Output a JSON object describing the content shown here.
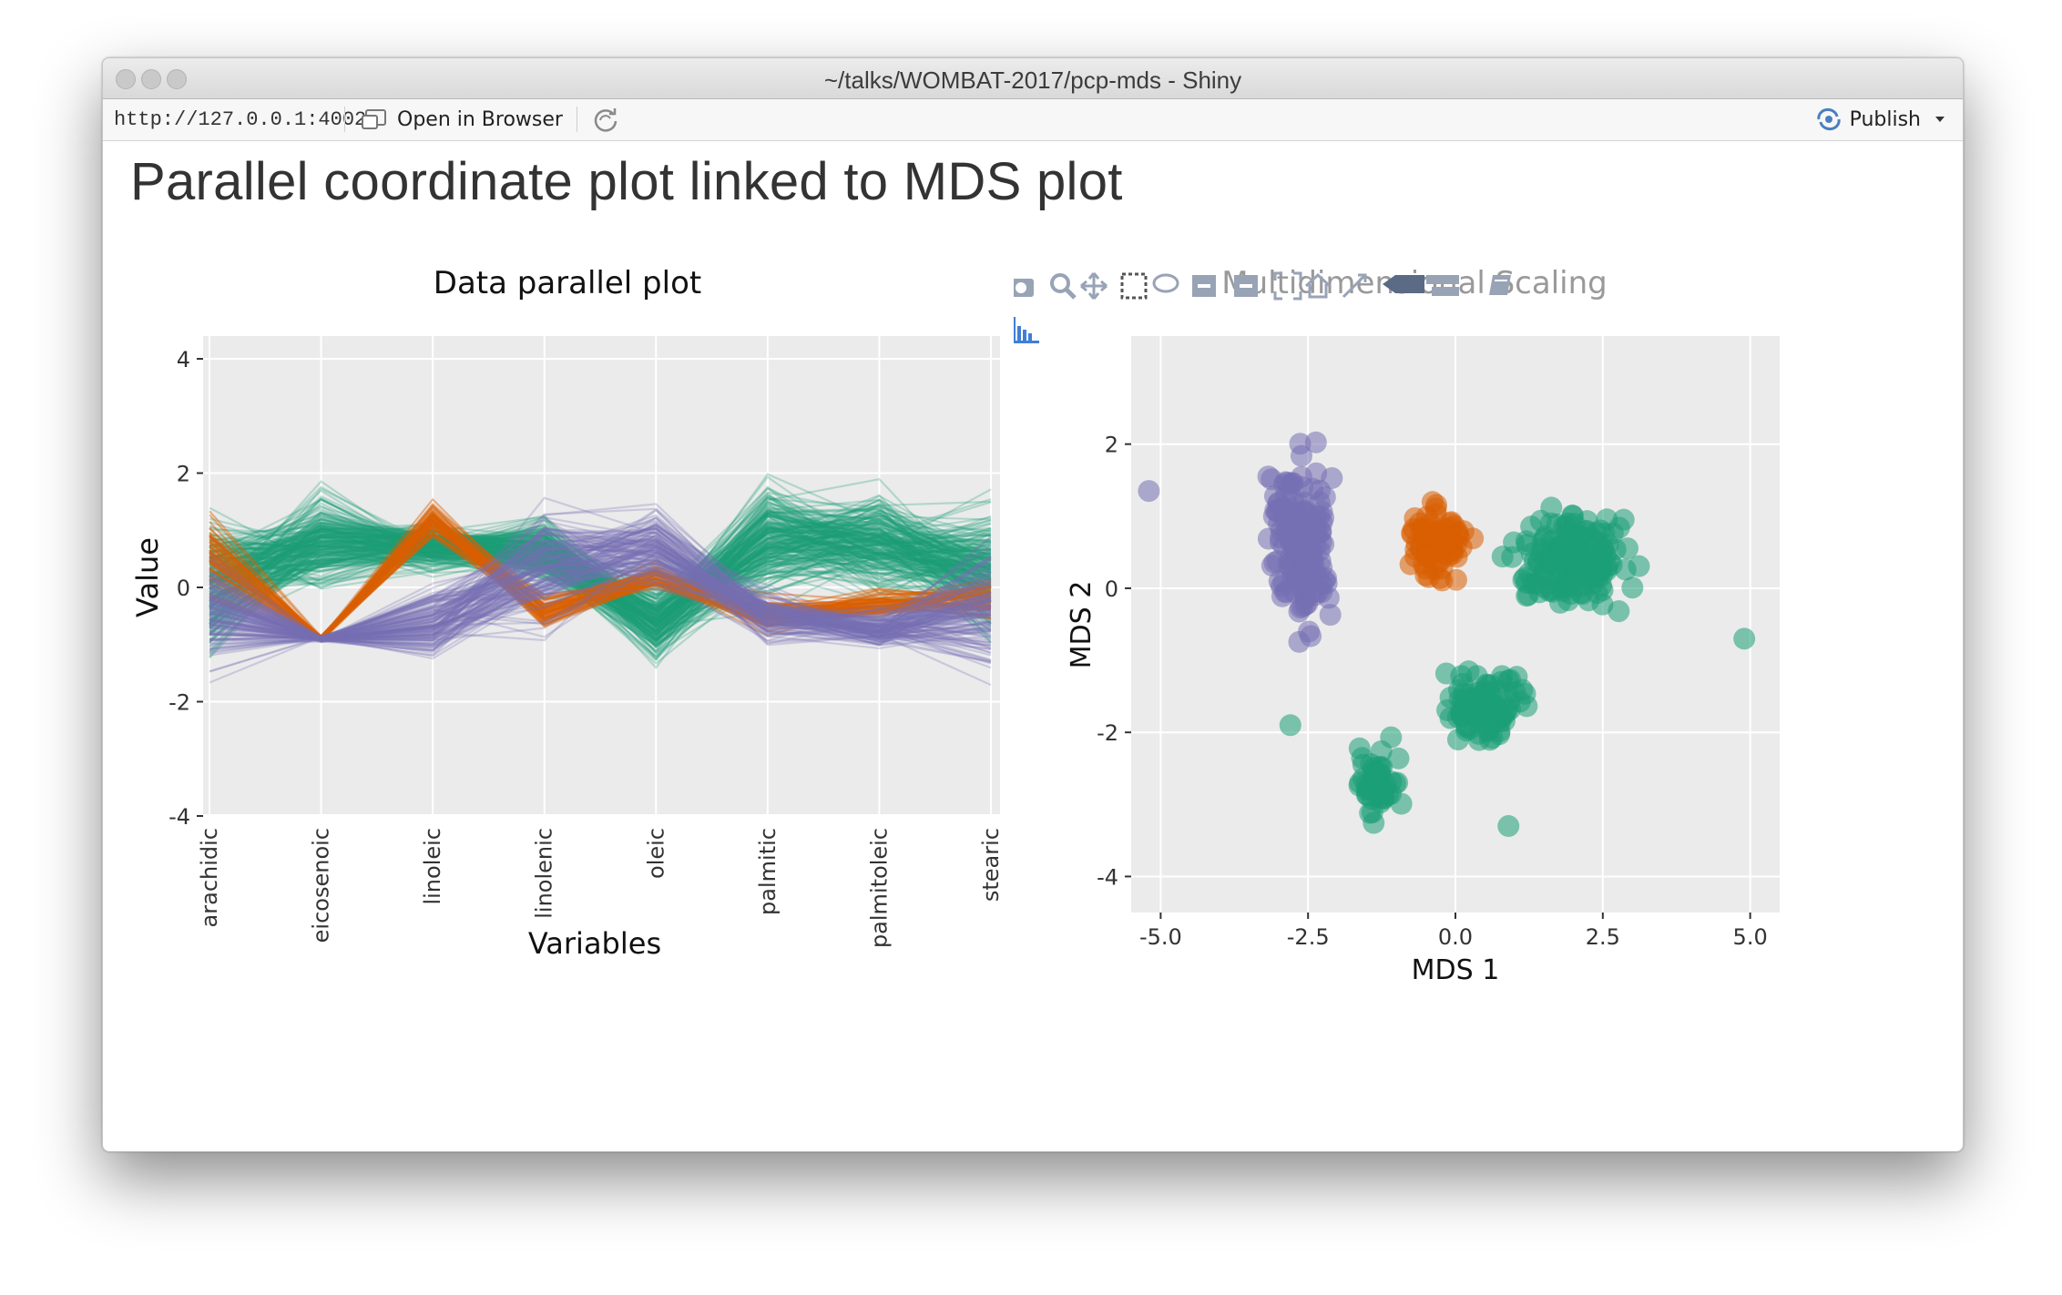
{
  "window": {
    "title": "~/talks/WOMBAT-2017/pcp-mds - Shiny"
  },
  "toolbar": {
    "url": "http://127.0.0.1:4002",
    "open_in_browser": "Open in Browser",
    "publish": "Publish"
  },
  "page": {
    "title": "Parallel coordinate plot linked to MDS plot"
  },
  "colors": {
    "group_green": "#1b9e77",
    "group_orange": "#d95f02",
    "group_purple": "#7570b3",
    "plot_bg": "#ebebeb"
  },
  "modebar_icons": [
    "camera-icon",
    "zoom-icon",
    "pan-icon",
    "box-select-icon",
    "lasso-icon",
    "zoom-in-icon",
    "zoom-out-icon",
    "autoscale-icon",
    "reset-axes-icon",
    "spike-lines-icon",
    "compare-hover-icon",
    "closest-hover-icon",
    "plotly-logo-icon"
  ],
  "chart_data": [
    {
      "type": "line",
      "title": "Data parallel plot",
      "xlabel": "Variables",
      "ylabel": "Value",
      "categories": [
        "arachidic",
        "eicosenoic",
        "linoleic",
        "linolenic",
        "oleic",
        "palmitic",
        "palmitoleic",
        "stearic"
      ],
      "ylim": [
        -4,
        4
      ],
      "y_ticks": [
        4,
        2,
        0,
        -2,
        -4
      ],
      "y_tick_labels": [
        "4",
        "2",
        "0",
        "-2",
        "-4"
      ],
      "grid": true,
      "series_profiles": [
        {
          "name": "",
          "color": "#1b9e77",
          "center": [
            0.0,
            0.8,
            0.7,
            0.6,
            -0.6,
            0.9,
            0.8,
            0.3
          ],
          "spread": [
            1.1,
            0.7,
            0.4,
            0.5,
            0.6,
            0.9,
            0.8,
            1.0
          ]
        },
        {
          "name": "",
          "color": "#d95f02",
          "center": [
            0.6,
            -0.9,
            1.2,
            -0.4,
            0.2,
            -0.5,
            -0.3,
            -0.2
          ],
          "spread": [
            0.6,
            0.05,
            0.3,
            0.35,
            0.25,
            0.25,
            0.25,
            0.35
          ]
        },
        {
          "name": "",
          "color": "#7570b3",
          "center": [
            -0.4,
            -0.9,
            -0.6,
            0.3,
            0.7,
            -0.5,
            -0.7,
            -0.3
          ],
          "spread": [
            0.9,
            0.05,
            0.6,
            0.9,
            0.6,
            0.4,
            0.35,
            1.1
          ]
        }
      ]
    },
    {
      "type": "scatter",
      "title": "Multidimensional Scaling",
      "xlabel": "MDS 1",
      "ylabel": "MDS 2",
      "xlim": [
        -5.5,
        5.5
      ],
      "ylim": [
        -4.5,
        3.5
      ],
      "x_ticks": [
        -5,
        -2.5,
        0,
        2.5,
        5
      ],
      "x_tick_labels": [
        "-5.0",
        "-2.5",
        "0.0",
        "2.5",
        "5.0"
      ],
      "y_ticks": [
        2,
        0,
        -2,
        -4
      ],
      "y_tick_labels": [
        "2",
        "0",
        "-2",
        "-4"
      ],
      "grid": true,
      "clusters": [
        {
          "name": "",
          "color": "#7570b3",
          "cx": -2.6,
          "cy": 0.6,
          "sx": 0.45,
          "sy": 1.2,
          "n": 160
        },
        {
          "name": "",
          "color": "#d95f02",
          "cx": -0.3,
          "cy": 0.6,
          "sx": 0.45,
          "sy": 0.45,
          "n": 80
        },
        {
          "name": "",
          "color": "#1b9e77",
          "cx": 2.0,
          "cy": 0.4,
          "sx": 0.9,
          "sy": 0.6,
          "n": 170
        },
        {
          "name": "",
          "color": "#1b9e77",
          "cx": 0.5,
          "cy": -1.6,
          "sx": 0.7,
          "sy": 0.5,
          "n": 90
        },
        {
          "name": "",
          "color": "#1b9e77",
          "cx": -1.3,
          "cy": -2.7,
          "sx": 0.35,
          "sy": 0.6,
          "n": 50
        }
      ],
      "outliers": [
        [
          -5.2,
          1.35
        ],
        [
          4.9,
          -0.7
        ],
        [
          -2.8,
          -1.9
        ],
        [
          0.9,
          -3.3
        ]
      ]
    }
  ]
}
